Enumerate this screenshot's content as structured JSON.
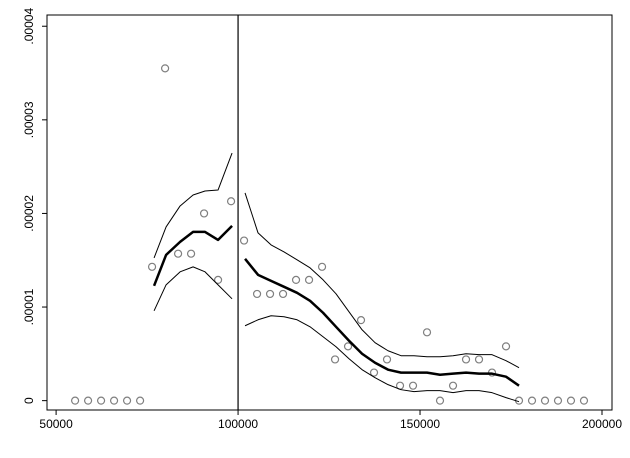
{
  "chart_data": {
    "type": "scatter",
    "xlim": [
      47500,
      202750
    ],
    "ylim": [
      -1e-06,
      4.12e-05
    ],
    "xticks": [
      50000,
      100000,
      150000,
      200000
    ],
    "yticks": [
      {
        "value": 0,
        "label": "0"
      },
      {
        "value": 1e-05,
        "label": ".00001"
      },
      {
        "value": 2e-05,
        "label": ".00002"
      },
      {
        "value": 3e-05,
        "label": ".00003"
      },
      {
        "value": 4e-05,
        "label": ".00004"
      }
    ],
    "grid": true,
    "xline": 100000,
    "points": {
      "color": "#7f7f7f",
      "x": [
        55220,
        58790,
        62360,
        65930,
        69500,
        73080,
        76370,
        79950,
        83520,
        87090,
        90660,
        94510,
        98080,
        101650,
        105220,
        108790,
        112360,
        115930,
        119510,
        123080,
        126650,
        130220,
        133790,
        137360,
        140930,
        144510,
        148080,
        151920,
        155490,
        159070,
        162640,
        166210,
        169780,
        173630,
        177200,
        180770,
        184340,
        187910,
        191480,
        195050
      ],
      "y": [
        0,
        0,
        0,
        0,
        0,
        0,
        1.43e-05,
        3.55e-05,
        1.57e-05,
        1.57e-05,
        2e-05,
        1.29e-05,
        2.13e-05,
        1.71e-05,
        1.14e-05,
        1.14e-05,
        1.14e-05,
        1.29e-05,
        1.29e-05,
        1.43e-05,
        4.4e-06,
        5.8e-06,
        8.6e-06,
        3e-06,
        4.4e-06,
        1.6e-06,
        1.6e-06,
        7.3e-06,
        0,
        1.6e-06,
        4.4e-06,
        4.4e-06,
        3e-06,
        5.8e-06,
        0,
        0,
        0,
        0,
        0,
        0
      ]
    },
    "lines": [
      {
        "color": "#000",
        "width": 2.5,
        "x": [
          76920,
          80220,
          84070,
          87640,
          90930,
          94510,
          98350
        ],
        "y": [
          1.227e-05,
          1.557e-05,
          1.696e-05,
          1.803e-05,
          1.803e-05,
          1.717e-05,
          1.867e-05
        ]
      },
      {
        "color": "#000",
        "width": 1,
        "x": [
          76920,
          80220,
          84070,
          87640,
          90930,
          94510,
          98350
        ],
        "y": [
          9.6e-06,
          1.237e-05,
          1.376e-05,
          1.429e-05,
          1.376e-05,
          1.237e-05,
          1.088e-05
        ]
      },
      {
        "color": "#000",
        "width": 1,
        "x": [
          76920,
          80220,
          84070,
          87640,
          90930,
          94510,
          98350
        ],
        "y": [
          1.525e-05,
          1.856e-05,
          2.08e-05,
          2.197e-05,
          2.24e-05,
          2.251e-05,
          2.645e-05
        ]
      },
      {
        "color": "#000",
        "width": 2.5,
        "x": [
          101920,
          105490,
          109070,
          112640,
          116210,
          119780,
          123350,
          126920,
          130490,
          134070,
          137640,
          141210,
          144780,
          148350,
          151920,
          155490,
          159070,
          162640,
          166210,
          169780,
          173630,
          177200
        ],
        "y": [
          1.515e-05,
          1.344e-05,
          1.28e-05,
          1.216e-05,
          1.152e-05,
          1.067e-05,
          9.39e-06,
          7.89e-06,
          6.4e-06,
          5.01e-06,
          4.05e-06,
          3.31e-06,
          2.99e-06,
          2.99e-06,
          2.99e-06,
          2.77e-06,
          2.88e-06,
          2.99e-06,
          2.88e-06,
          2.88e-06,
          2.56e-06,
          1.6e-06
        ]
      },
      {
        "color": "#000",
        "width": 1,
        "x": [
          101920,
          105490,
          109070,
          112640,
          116210,
          119780,
          123350,
          126920,
          130490,
          134070,
          137640,
          141210,
          144780,
          148350,
          151920,
          155490,
          159070,
          162640,
          166210,
          169780,
          173630,
          177200
        ],
        "y": [
          8e-06,
          8.64e-06,
          9.07e-06,
          8.96e-06,
          8.64e-06,
          7.89e-06,
          6.83e-06,
          5.76e-06,
          4.48e-06,
          3.31e-06,
          2.45e-06,
          1.71e-06,
          1.17e-06,
          9.6e-07,
          1.07e-06,
          1.07e-06,
          8.5e-07,
          1.07e-06,
          1.07e-06,
          8.5e-07,
          3.2e-07,
          -1.1e-07
        ]
      },
      {
        "color": "#000",
        "width": 1,
        "x": [
          101920,
          105490,
          109070,
          112640,
          116210,
          119780,
          123350,
          126920,
          130490,
          134070,
          137640,
          141210,
          144780,
          148350,
          151920,
          155490,
          159070,
          162640,
          166210,
          169780,
          173630,
          177200
        ],
        "y": [
          2.219e-05,
          1.792e-05,
          1.664e-05,
          1.589e-05,
          1.504e-05,
          1.419e-05,
          1.291e-05,
          1.141e-05,
          9.49e-06,
          7.57e-06,
          6.19e-06,
          5.33e-06,
          4.8e-06,
          4.8e-06,
          4.69e-06,
          4.69e-06,
          4.8e-06,
          5.01e-06,
          4.91e-06,
          4.91e-06,
          4.27e-06,
          3.52e-06
        ]
      }
    ]
  }
}
